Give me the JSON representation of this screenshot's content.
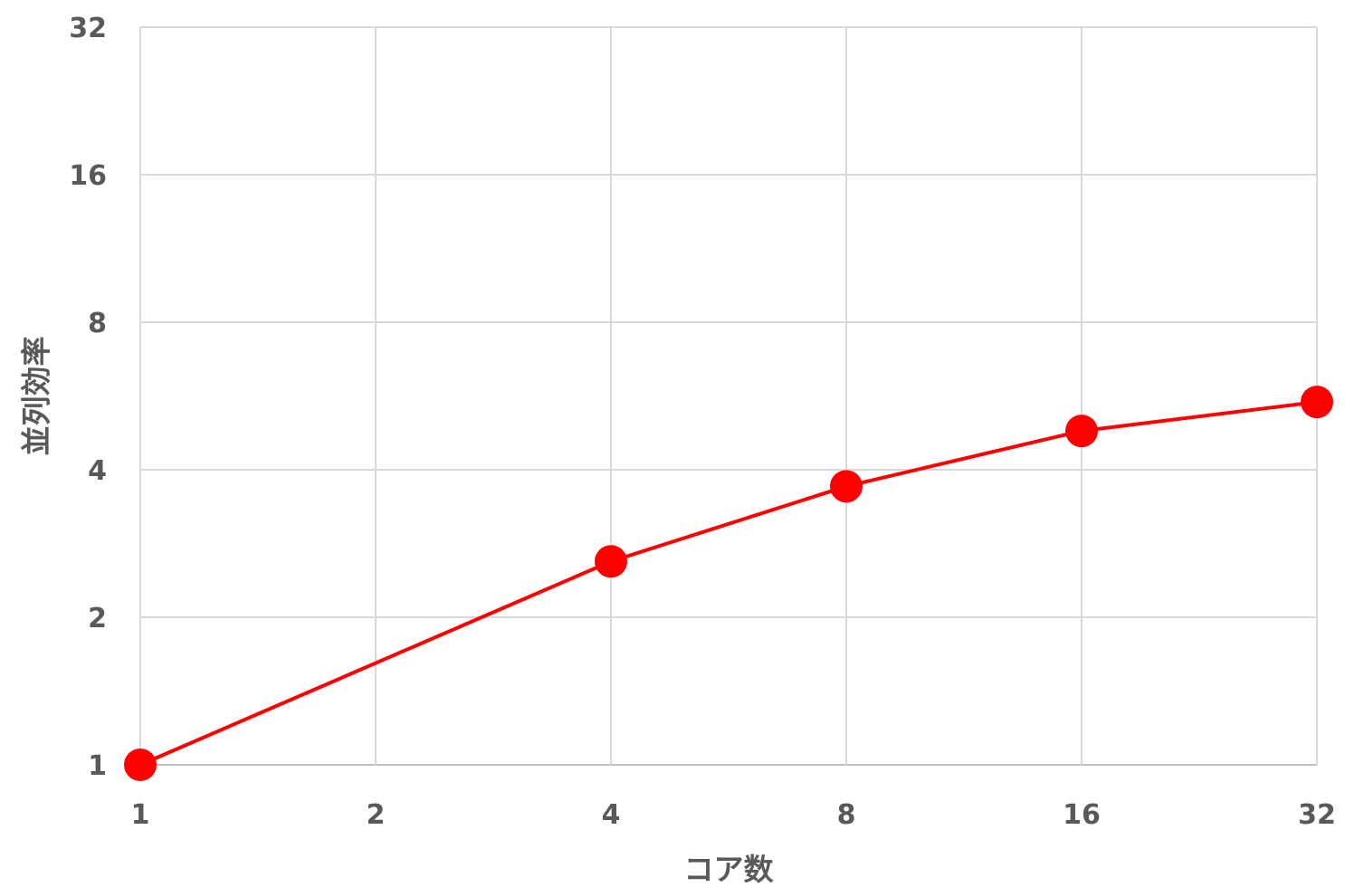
{
  "chart_data": {
    "type": "line",
    "title": "",
    "xlabel": "コア数",
    "ylabel": "並列効率",
    "x_scale": "log2",
    "y_scale": "log2",
    "xlim": [
      1,
      32
    ],
    "ylim": [
      1,
      32
    ],
    "x_ticks": [
      "1",
      "2",
      "4",
      "8",
      "16",
      "32"
    ],
    "y_ticks": [
      "1",
      "2",
      "4",
      "8",
      "16",
      "32"
    ],
    "grid": true,
    "legend": "none",
    "series": [
      {
        "color": "#ff0000",
        "x": [
          1,
          4,
          8,
          16,
          32
        ],
        "y": [
          1,
          2.6,
          3.7,
          4.8,
          5.5
        ]
      }
    ]
  }
}
